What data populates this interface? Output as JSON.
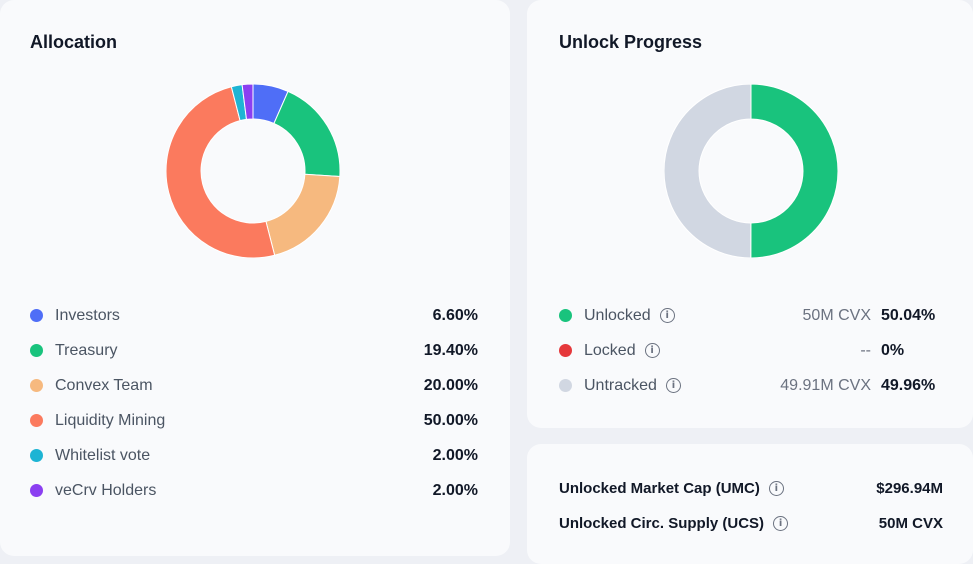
{
  "allocation": {
    "title": "Allocation",
    "items": [
      {
        "label": "Investors",
        "pct": "6.60%",
        "value": 6.6,
        "color": "#4f6ef7"
      },
      {
        "label": "Treasury",
        "pct": "19.40%",
        "value": 19.4,
        "color": "#19c37d"
      },
      {
        "label": "Convex Team",
        "pct": "20.00%",
        "value": 20.0,
        "color": "#f6b97f"
      },
      {
        "label": "Liquidity Mining",
        "pct": "50.00%",
        "value": 50.0,
        "color": "#fb7a5e"
      },
      {
        "label": "Whitelist vote",
        "pct": "2.00%",
        "value": 2.0,
        "color": "#1db4d4"
      },
      {
        "label": "veCrv Holders",
        "pct": "2.00%",
        "value": 2.0,
        "color": "#8b3ff1"
      }
    ]
  },
  "unlock": {
    "title": "Unlock Progress",
    "items": [
      {
        "label": "Unlocked",
        "amount": "50M CVX",
        "pct": "50.04%",
        "value": 50.04,
        "color": "#19c37d"
      },
      {
        "label": "Locked",
        "amount": "--",
        "pct": "0%",
        "value": 0,
        "color": "#e5383b"
      },
      {
        "label": "Untracked",
        "amount": "49.91M CVX",
        "pct": "49.96%",
        "value": 49.96,
        "color": "#d1d7e2"
      }
    ]
  },
  "metrics": [
    {
      "label": "Unlocked Market Cap (UMC)",
      "value": "$296.94M"
    },
    {
      "label": "Unlocked Circ. Supply (UCS)",
      "value": "50M CVX"
    }
  ],
  "icons": {
    "info": "info-circle-icon"
  }
}
